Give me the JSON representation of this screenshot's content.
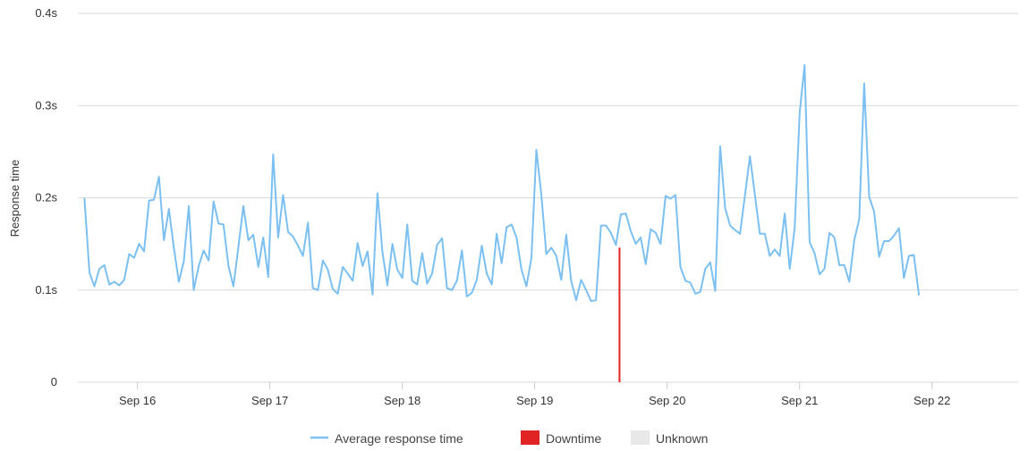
{
  "chart_data": {
    "type": "line",
    "title": "",
    "xlabel": "",
    "ylabel": "Response time",
    "ylim": [
      0,
      0.4
    ],
    "y_ticks": [
      {
        "value": 0,
        "label": "0"
      },
      {
        "value": 0.1,
        "label": "0.1s"
      },
      {
        "value": 0.2,
        "label": "0.2s"
      },
      {
        "value": 0.3,
        "label": "0.3s"
      },
      {
        "value": 0.4,
        "label": "0.4s"
      }
    ],
    "x_range_days": [
      15.55,
      22.65
    ],
    "x_ticks": [
      {
        "value": 16,
        "label": "Sep 16"
      },
      {
        "value": 17,
        "label": "Sep 17"
      },
      {
        "value": 18,
        "label": "Sep 18"
      },
      {
        "value": 19,
        "label": "Sep 19"
      },
      {
        "value": 20,
        "label": "Sep 20"
      },
      {
        "value": 21,
        "label": "Sep 21"
      },
      {
        "value": 22,
        "label": "Sep 22"
      }
    ],
    "series": [
      {
        "name": "Average response time",
        "color": "#7cc0f2",
        "x_start_day": 15.6,
        "x_step_days": 0.0375,
        "values": [
          0.199,
          0.119,
          0.104,
          0.123,
          0.127,
          0.106,
          0.109,
          0.105,
          0.111,
          0.139,
          0.135,
          0.15,
          0.142,
          0.197,
          0.198,
          0.223,
          0.154,
          0.188,
          0.146,
          0.109,
          0.131,
          0.191,
          0.1,
          0.126,
          0.143,
          0.132,
          0.196,
          0.172,
          0.171,
          0.126,
          0.104,
          0.147,
          0.191,
          0.154,
          0.16,
          0.125,
          0.157,
          0.114,
          0.247,
          0.157,
          0.203,
          0.163,
          0.158,
          0.148,
          0.137,
          0.173,
          0.102,
          0.1,
          0.132,
          0.122,
          0.101,
          0.096,
          0.125,
          0.118,
          0.11,
          0.151,
          0.126,
          0.142,
          0.095,
          0.205,
          0.141,
          0.105,
          0.15,
          0.122,
          0.113,
          0.171,
          0.11,
          0.106,
          0.14,
          0.107,
          0.118,
          0.149,
          0.156,
          0.102,
          0.1,
          0.11,
          0.143,
          0.093,
          0.097,
          0.111,
          0.148,
          0.118,
          0.106,
          0.161,
          0.129,
          0.168,
          0.171,
          0.157,
          0.122,
          0.104,
          0.135,
          0.252,
          0.203,
          0.139,
          0.146,
          0.137,
          0.111,
          0.16,
          0.11,
          0.089,
          0.111,
          0.1,
          0.088,
          0.089,
          0.17,
          0.17,
          0.162,
          0.149,
          0.182,
          0.183,
          0.164,
          0.15,
          0.157,
          0.128,
          0.166,
          0.162,
          0.15,
          0.202,
          0.199,
          0.203,
          0.125,
          0.11,
          0.108,
          0.096,
          0.098,
          0.123,
          0.13,
          0.099,
          0.256,
          0.189,
          0.17,
          0.165,
          0.161,
          0.203,
          0.245,
          0.203,
          0.161,
          0.161,
          0.137,
          0.144,
          0.137,
          0.183,
          0.123,
          0.167,
          0.292,
          0.344,
          0.152,
          0.14,
          0.117,
          0.123,
          0.162,
          0.157,
          0.127,
          0.127,
          0.109,
          0.154,
          0.177,
          0.324,
          0.201,
          0.185,
          0.136,
          0.153,
          0.153,
          0.159,
          0.167,
          0.113,
          0.137,
          0.138,
          0.095
        ]
      }
    ],
    "downtime_markers": [
      {
        "day": 19.64,
        "value": 0.146
      }
    ],
    "legend": {
      "position": "bottom-center",
      "items": [
        {
          "label": "Average response time",
          "color": "#7cc0f2",
          "kind": "line"
        },
        {
          "label": "Downtime",
          "color": "#e02424",
          "kind": "box"
        },
        {
          "label": "Unknown",
          "color": "#e8e8e8",
          "kind": "box"
        }
      ]
    },
    "grid": true
  }
}
